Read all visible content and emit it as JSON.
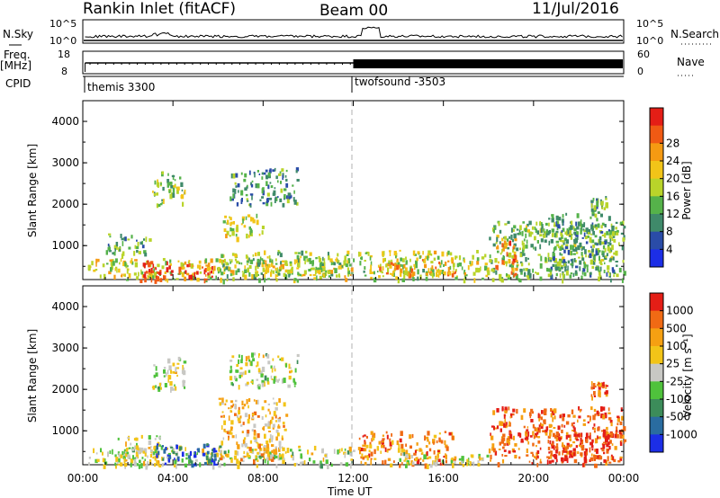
{
  "header": {
    "radar_title": "Rankin Inlet (fitACF)",
    "beam_label": "Beam 00",
    "date_label": "11/Jul/2016"
  },
  "top_panels": {
    "nsky_label": "N.Sky",
    "nsky_ticks": [
      "10^5",
      "10^0"
    ],
    "nsearch_label": "N.Search",
    "nsearch_ticks": [
      "10^5",
      "10^0"
    ],
    "freq_label": "Freq.",
    "freq_unit": "[MHz]",
    "freq_ticks": [
      "18",
      "8"
    ],
    "nave_label": "Nave",
    "nave_ticks": [
      "60",
      "0"
    ],
    "cpid_label": "CPID",
    "cpid_programs": [
      {
        "name": "themis 3300",
        "start_hour": 0.0
      },
      {
        "name": "twofsound -3503",
        "start_hour": 12.0
      }
    ]
  },
  "chart_data": [
    {
      "type": "heatmap",
      "panel": "power",
      "ylabel": "Slant Range [km]",
      "xlabel": "",
      "x_unit": "hours UT",
      "xlim": [
        0,
        24
      ],
      "ylim": [
        180,
        4500
      ],
      "y_ticks": [
        "1000",
        "2000",
        "3000",
        "4000"
      ],
      "colorbar_label": "Power [dB]",
      "colorbar_ticks": [
        "4",
        "8",
        "12",
        "16",
        "20",
        "24",
        "28"
      ],
      "colorbar_colors": [
        "#1c2ee6",
        "#2a4ca8",
        "#3f8a6a",
        "#55b24a",
        "#b9d42a",
        "#f2c418",
        "#f59a12",
        "#f05a14",
        "#e41e16"
      ],
      "scatter_blobs": [
        {
          "x0": 0.2,
          "x1": 12.0,
          "y0": 180,
          "y1": 700,
          "level": 0.55
        },
        {
          "x0": 2.5,
          "x1": 4.0,
          "y0": 180,
          "y1": 650,
          "level": 0.95
        },
        {
          "x0": 4.2,
          "x1": 5.8,
          "y0": 200,
          "y1": 600,
          "level": 0.8
        },
        {
          "x0": 6.0,
          "x1": 11.8,
          "y0": 300,
          "y1": 900,
          "level": 0.45
        },
        {
          "x0": 1.0,
          "x1": 3.0,
          "y0": 800,
          "y1": 1300,
          "level": 0.35
        },
        {
          "x0": 6.2,
          "x1": 8.0,
          "y0": 1200,
          "y1": 1800,
          "level": 0.5
        },
        {
          "x0": 6.5,
          "x1": 9.5,
          "y0": 2000,
          "y1": 2900,
          "level": 0.3
        },
        {
          "x0": 3.0,
          "x1": 4.5,
          "y0": 2000,
          "y1": 2800,
          "level": 0.45
        },
        {
          "x0": 12.2,
          "x1": 18.0,
          "y0": 200,
          "y1": 900,
          "level": 0.5
        },
        {
          "x0": 13.0,
          "x1": 16.5,
          "y0": 300,
          "y1": 700,
          "level": 0.7
        },
        {
          "x0": 18.0,
          "x1": 24.0,
          "y0": 200,
          "y1": 1600,
          "level": 0.4
        },
        {
          "x0": 18.3,
          "x1": 19.2,
          "y0": 300,
          "y1": 1200,
          "level": 0.75
        },
        {
          "x0": 20.5,
          "x1": 23.5,
          "y0": 300,
          "y1": 1800,
          "level": 0.35
        },
        {
          "x0": 22.5,
          "x1": 23.2,
          "y0": 1800,
          "y1": 2200,
          "level": 0.35
        }
      ]
    },
    {
      "type": "heatmap",
      "panel": "velocity",
      "ylabel": "Slant Range [km]",
      "xlabel": "Time UT",
      "x_unit": "hours UT",
      "xlim": [
        0,
        24
      ],
      "ylim": [
        180,
        4500
      ],
      "y_ticks": [
        "1000",
        "2000",
        "3000",
        "4000"
      ],
      "x_ticks": [
        "00:00",
        "04:00",
        "08:00",
        "12:00",
        "16:00",
        "20:00",
        "00:00"
      ],
      "colorbar_label": "Velocity [m s⁻¹]",
      "colorbar_ticks": [
        "1000",
        "500",
        "100",
        "25",
        "-25",
        "-100",
        "-500",
        "-1000"
      ],
      "colorbar_colors": [
        "#1c2ee6",
        "#2a6ca0",
        "#3c8c5a",
        "#4fc23c",
        "#c8c8c4",
        "#f2c418",
        "#f5a012",
        "#f06a14",
        "#e41e16"
      ],
      "scatter_blobs": [
        {
          "x0": 0.2,
          "x1": 12.0,
          "y0": 180,
          "y1": 650,
          "level": 0.5
        },
        {
          "x0": 1.5,
          "x1": 3.5,
          "y0": 180,
          "y1": 900,
          "level": 0.5
        },
        {
          "x0": 3.2,
          "x1": 6.2,
          "y0": 200,
          "y1": 700,
          "level": 0.15
        },
        {
          "x0": 6.0,
          "x1": 9.0,
          "y0": 300,
          "y1": 1800,
          "level": 0.65
        },
        {
          "x0": 3.0,
          "x1": 4.5,
          "y0": 2000,
          "y1": 2800,
          "level": 0.5
        },
        {
          "x0": 6.5,
          "x1": 9.5,
          "y0": 2100,
          "y1": 2900,
          "level": 0.5
        },
        {
          "x0": 12.2,
          "x1": 16.5,
          "y0": 200,
          "y1": 1000,
          "level": 0.75
        },
        {
          "x0": 14.0,
          "x1": 18.0,
          "y0": 180,
          "y1": 500,
          "level": 0.5
        },
        {
          "x0": 18.0,
          "x1": 24.0,
          "y0": 200,
          "y1": 1600,
          "level": 0.85
        },
        {
          "x0": 20.5,
          "x1": 23.5,
          "y0": 300,
          "y1": 1000,
          "level": 0.92
        },
        {
          "x0": 22.5,
          "x1": 23.2,
          "y0": 1800,
          "y1": 2200,
          "level": 0.8
        }
      ]
    }
  ]
}
